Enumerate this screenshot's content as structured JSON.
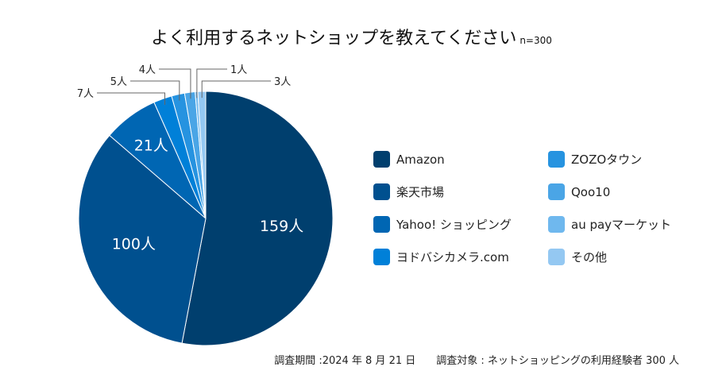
{
  "chart_data": {
    "type": "pie",
    "title": "よく利用するネットショップを教えてください",
    "subtitle": "n=300",
    "unit": "人",
    "legend_position": "right",
    "slices": [
      {
        "label": "Amazon",
        "value": 159,
        "color": "#003f6e"
      },
      {
        "label": "楽天市場",
        "value": 100,
        "color": "#00508f"
      },
      {
        "label": "Yahoo! ショッピング",
        "value": 21,
        "color": "#0066b3"
      },
      {
        "label": "ヨドバシカメラ.com",
        "value": 7,
        "color": "#0080d8"
      },
      {
        "label": "ZOZOタウン",
        "value": 5,
        "color": "#2693e0"
      },
      {
        "label": "Qoo10",
        "value": 4,
        "color": "#4aa5e6"
      },
      {
        "label": "au payマーケット",
        "value": 1,
        "color": "#6fb8ee"
      },
      {
        "label": "その他",
        "value": 3,
        "color": "#94c8f2"
      }
    ]
  },
  "footer": {
    "period": "調査期間 :2024 年 8 月 21 日",
    "target": "調査対象 : ネットショッピングの利用経験者 300 人"
  }
}
